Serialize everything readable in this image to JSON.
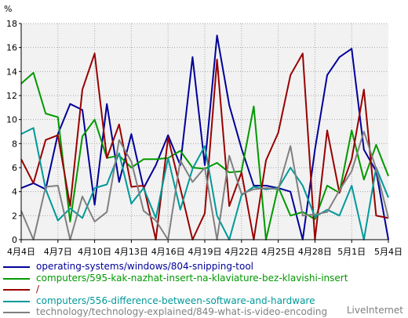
{
  "chart_data": {
    "type": "line",
    "unit_label": "%",
    "ylim": [
      0,
      18
    ],
    "y_ticks": [
      "0",
      "2",
      "4",
      "6",
      "8",
      "10",
      "12",
      "14",
      "16",
      "18"
    ],
    "x_tick_labels": [
      "4月4日",
      "4月7日",
      "4月10日",
      "4月13日",
      "4月16日",
      "4月19日",
      "4月22日",
      "4月25日",
      "4月28日",
      "5月1日",
      "5月4日"
    ],
    "grid": true,
    "legend_position": "bottom",
    "categories": [
      "4月4日",
      "4月5日",
      "4月6日",
      "4月7日",
      "4月8日",
      "4月9日",
      "4月10日",
      "4月11日",
      "4月12日",
      "4月13日",
      "4月14日",
      "4月15日",
      "4月16日",
      "4月17日",
      "4月18日",
      "4月19日",
      "4月20日",
      "4月21日",
      "4月22日",
      "4月23日",
      "4月24日",
      "4月25日",
      "4月26日",
      "4月27日",
      "4月28日",
      "4月29日",
      "4月30日",
      "5月1日",
      "5月2日",
      "5月3日",
      "5月4日"
    ],
    "series": [
      {
        "name": "operating-systems/windows/804-snipping-tool",
        "color": "#000099",
        "values": [
          4.3,
          4.7,
          4.2,
          8.8,
          11.3,
          10.8,
          2.9,
          11.3,
          4.8,
          8.8,
          4.3,
          6.2,
          8.7,
          6.2,
          15.2,
          6.2,
          17.0,
          11.2,
          7.6,
          4.5,
          4.5,
          4.3,
          4.0,
          0.0,
          7.5,
          13.7,
          15.2,
          15.9,
          7.5,
          5.7,
          0.0
        ]
      },
      {
        "name": "computers/595-kak-nazhat-insert-na-klaviature-bez-klavishi-insert",
        "color": "#009900",
        "values": [
          13.0,
          13.9,
          10.5,
          10.2,
          1.5,
          8.6,
          10.0,
          6.8,
          7.0,
          6.0,
          6.7,
          6.7,
          6.8,
          7.4,
          6.0,
          5.9,
          6.4,
          5.6,
          5.7,
          11.1,
          0.0,
          4.4,
          2.0,
          2.3,
          1.7,
          4.5,
          3.9,
          9.1,
          5.0,
          7.9,
          5.3
        ]
      },
      {
        "name": "/",
        "color": "#990000",
        "values": [
          6.7,
          4.7,
          8.3,
          8.7,
          2.8,
          12.5,
          15.5,
          6.8,
          9.6,
          4.4,
          4.5,
          0.0,
          8.5,
          4.3,
          0.0,
          2.2,
          15.0,
          2.8,
          5.6,
          0.0,
          6.6,
          8.9,
          13.7,
          15.5,
          0.0,
          9.1,
          3.9,
          6.7,
          12.5,
          2.0,
          1.8
        ]
      },
      {
        "name": "computers/556-difference-between-software-and-hardware",
        "color": "#009999",
        "values": [
          8.8,
          9.3,
          4.2,
          1.6,
          2.6,
          1.8,
          4.3,
          4.6,
          7.2,
          3.0,
          4.3,
          1.8,
          6.8,
          2.5,
          5.9,
          7.8,
          2.0,
          0.0,
          3.7,
          4.4,
          4.2,
          4.3,
          6.0,
          4.5,
          1.9,
          2.5,
          2.0,
          4.5,
          0.0,
          6.0,
          3.5
        ]
      },
      {
        "name": "technology/technology-explained/849-what-is-video-encoding",
        "color": "#808080",
        "values": [
          2.4,
          0.0,
          4.4,
          4.5,
          0.0,
          3.6,
          1.5,
          2.3,
          8.3,
          6.5,
          2.4,
          1.6,
          0.0,
          6.6,
          4.8,
          6.0,
          0.0,
          7.0,
          3.8,
          4.2,
          4.3,
          4.2,
          7.8,
          2.0,
          2.1,
          2.3,
          4.1,
          5.7,
          9.0,
          5.9,
          1.8
        ]
      }
    ]
  },
  "branding": {
    "text": "LiveInternet"
  }
}
